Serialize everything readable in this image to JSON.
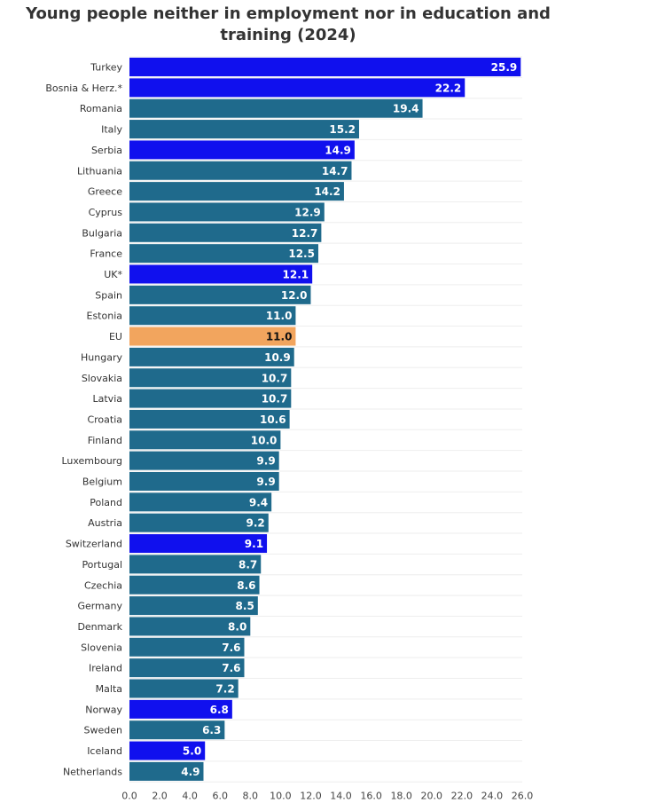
{
  "chart_data": {
    "type": "bar",
    "orientation": "horizontal",
    "title": "Young people neither in employment nor in education and training (2024)",
    "xlabel": "",
    "ylabel": "",
    "xlim": [
      0,
      26
    ],
    "xticks": [
      0,
      2,
      4,
      6,
      8,
      10,
      12,
      14,
      16,
      18,
      20,
      22,
      24,
      26
    ],
    "tick_format_decimals": 1,
    "grid": true,
    "colors": {
      "eu_member": "#1f6a8c",
      "non_eu": "#1010ee",
      "eu_average": "#f2a55e",
      "label_on_dark": "#ffffff",
      "label_on_eu": "#111111"
    },
    "categories": [
      "Turkey",
      "Bosnia & Herz.*",
      "Romania",
      "Italy",
      "Serbia",
      "Lithuania",
      "Greece",
      "Cyprus",
      "Bulgaria",
      "France",
      "UK*",
      "Spain",
      "Estonia",
      "EU",
      "Hungary",
      "Slovakia",
      "Latvia",
      "Croatia",
      "Finland",
      "Luxembourg",
      "Belgium",
      "Poland",
      "Austria",
      "Switzerland",
      "Portugal",
      "Czechia",
      "Germany",
      "Denmark",
      "Slovenia",
      "Ireland",
      "Malta",
      "Norway",
      "Sweden",
      "Iceland",
      "Netherlands"
    ],
    "values": [
      25.9,
      22.2,
      19.4,
      15.2,
      14.9,
      14.7,
      14.2,
      12.9,
      12.7,
      12.5,
      12.1,
      12.0,
      11.0,
      11.0,
      10.9,
      10.7,
      10.7,
      10.6,
      10.0,
      9.9,
      9.9,
      9.4,
      9.2,
      9.1,
      8.7,
      8.6,
      8.5,
      8.0,
      7.6,
      7.6,
      7.2,
      6.8,
      6.3,
      5.0,
      4.9
    ],
    "groups": [
      "non_eu",
      "non_eu",
      "eu_member",
      "eu_member",
      "non_eu",
      "eu_member",
      "eu_member",
      "eu_member",
      "eu_member",
      "eu_member",
      "non_eu",
      "eu_member",
      "eu_member",
      "eu_average",
      "eu_member",
      "eu_member",
      "eu_member",
      "eu_member",
      "eu_member",
      "eu_member",
      "eu_member",
      "eu_member",
      "eu_member",
      "non_eu",
      "eu_member",
      "eu_member",
      "eu_member",
      "eu_member",
      "eu_member",
      "eu_member",
      "eu_member",
      "non_eu",
      "eu_member",
      "non_eu",
      "eu_member"
    ]
  }
}
